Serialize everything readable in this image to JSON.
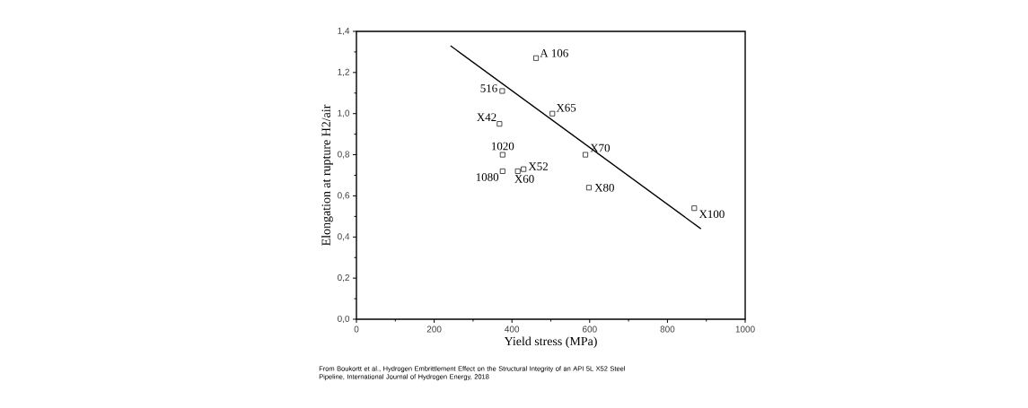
{
  "chart_data": {
    "type": "scatter",
    "xlabel": "Yield stress (MPa)",
    "ylabel": "Elongation at rupture H2/air",
    "xlim": [
      0,
      1000
    ],
    "ylim": [
      0,
      1.4
    ],
    "xticks": [
      0,
      200,
      400,
      600,
      800,
      1000
    ],
    "yticks": [
      {
        "value": 0,
        "label": "0,0"
      },
      {
        "value": 0.2,
        "label": "0,2"
      },
      {
        "value": 0.4,
        "label": "0,4"
      },
      {
        "value": 0.6,
        "label": "0,6"
      },
      {
        "value": 0.8,
        "label": "0,8"
      },
      {
        "value": 1.0,
        "label": "1,0"
      },
      {
        "value": 1.2,
        "label": "1,2"
      },
      {
        "value": 1.4,
        "label": "1,4"
      }
    ],
    "marker": "square",
    "grid": false,
    "series": [
      {
        "color": "#000000",
        "x": [
          462,
          375,
          504,
          368,
          376,
          589,
          430,
          376,
          415,
          598,
          869
        ],
        "values": [
          1.27,
          1.11,
          1.0,
          0.95,
          0.8,
          0.8,
          0.73,
          0.72,
          0.72,
          0.64,
          0.54
        ]
      },
      {
        "type": "line",
        "color": "#000000",
        "marker": "none",
        "x": [
          242,
          886
        ],
        "values": [
          1.33,
          0.44
        ]
      }
    ],
    "annotations": [
      {
        "text": "A 106",
        "x": 462,
        "y": 1.27
      },
      {
        "text": "516",
        "x": 375,
        "y": 1.11
      },
      {
        "text": "X65",
        "x": 504,
        "y": 1.0
      },
      {
        "text": "X42",
        "x": 368,
        "y": 0.95
      },
      {
        "text": "1020",
        "x": 376,
        "y": 0.8
      },
      {
        "text": "X70",
        "x": 589,
        "y": 0.8
      },
      {
        "text": "X52",
        "x": 430,
        "y": 0.73
      },
      {
        "text": "1080",
        "x": 376,
        "y": 0.72
      },
      {
        "text": "X60",
        "x": 415,
        "y": 0.72
      },
      {
        "text": "X80",
        "x": 598,
        "y": 0.64
      },
      {
        "text": "X100",
        "x": 869,
        "y": 0.54
      },
      "From Boukortt et al., Hydrogen Embrittlement  Effect on the Structural Integrity of an API 5L X52 Steel Pipeline, International Journal of Hydrogen Energy, 2018"
    ]
  }
}
